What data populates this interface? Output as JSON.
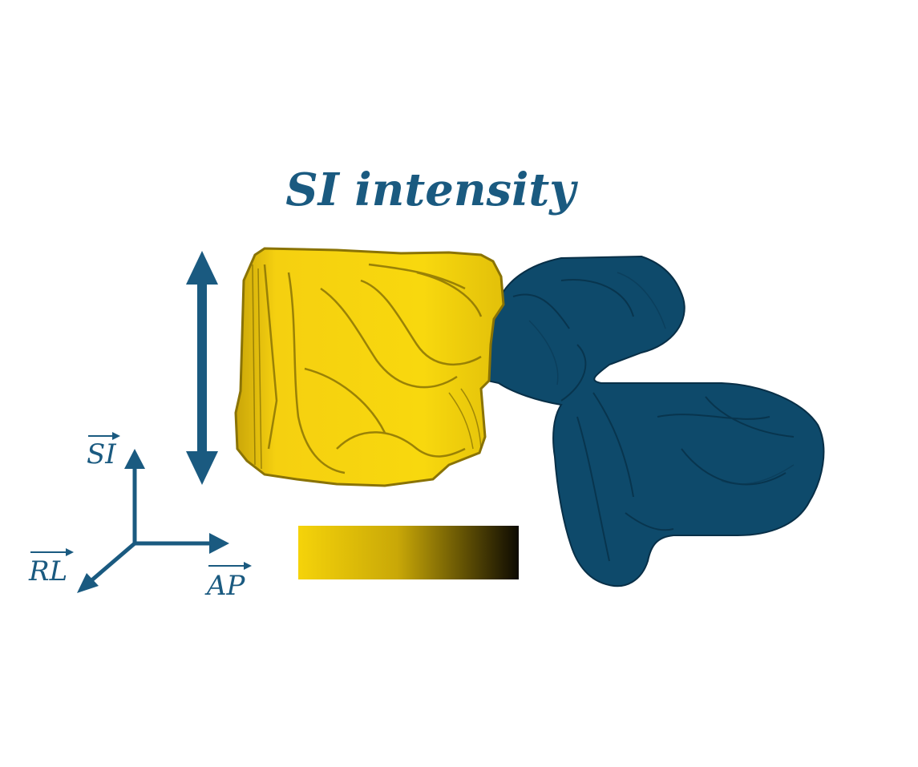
{
  "title": "SI intensity",
  "axes": {
    "si_label": "SI",
    "rl_label": "RL",
    "ap_label": "AP"
  },
  "colors": {
    "accent": "#1a5a80",
    "vertebral_body": "#f2cc0c",
    "vertebral_body_shadow": "#8a7305",
    "posterior_elements": "#0e4a6b",
    "posterior_elements_shadow": "#082f47",
    "gradient_start": "#f5d30a",
    "gradient_end": "#0d0a02"
  },
  "icons": {
    "si_arrow": "double-arrow-vertical-icon",
    "axes": "coordinate-axes-icon"
  }
}
